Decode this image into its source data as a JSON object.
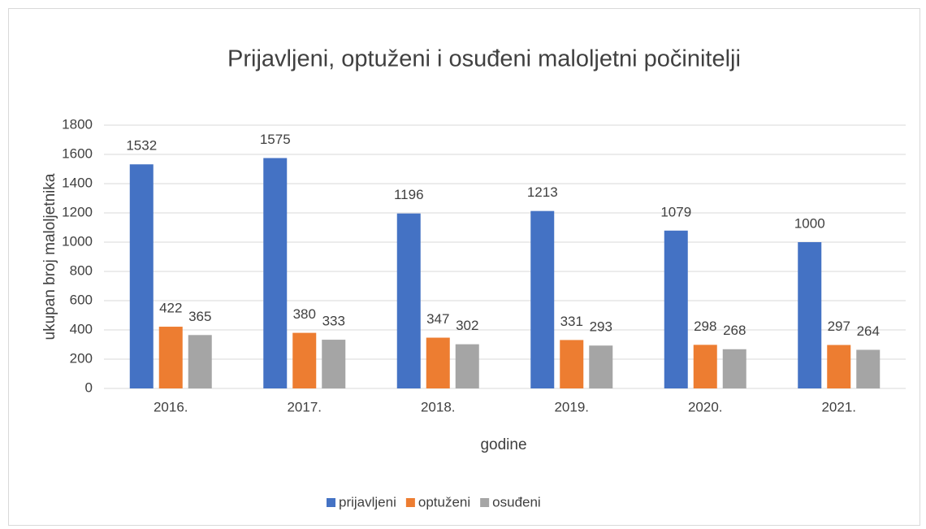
{
  "chart_data": {
    "type": "bar",
    "title": "Prijavljeni, optuženi i osuđeni maloljetni počinitelji",
    "x_label": "godine",
    "y_label": "ukupan broj maloljetnika",
    "categories": [
      "2016.",
      "2017.",
      "2018.",
      "2019.",
      "2020.",
      "2021."
    ],
    "series": [
      {
        "name": "prijavljeni",
        "color": "#4472c4",
        "values": [
          1532,
          1575,
          1196,
          1213,
          1079,
          1000
        ]
      },
      {
        "name": "optuženi",
        "color": "#ed7d31",
        "values": [
          422,
          380,
          347,
          331,
          298,
          297
        ]
      },
      {
        "name": "osuđeni",
        "color": "#a5a5a5",
        "values": [
          365,
          333,
          302,
          293,
          268,
          264
        ]
      }
    ],
    "ylim": [
      0,
      1800
    ],
    "yticks": [
      0,
      200,
      400,
      600,
      800,
      1000,
      1200,
      1400,
      1600,
      1800
    ],
    "grid": true,
    "legend": "bottom"
  }
}
